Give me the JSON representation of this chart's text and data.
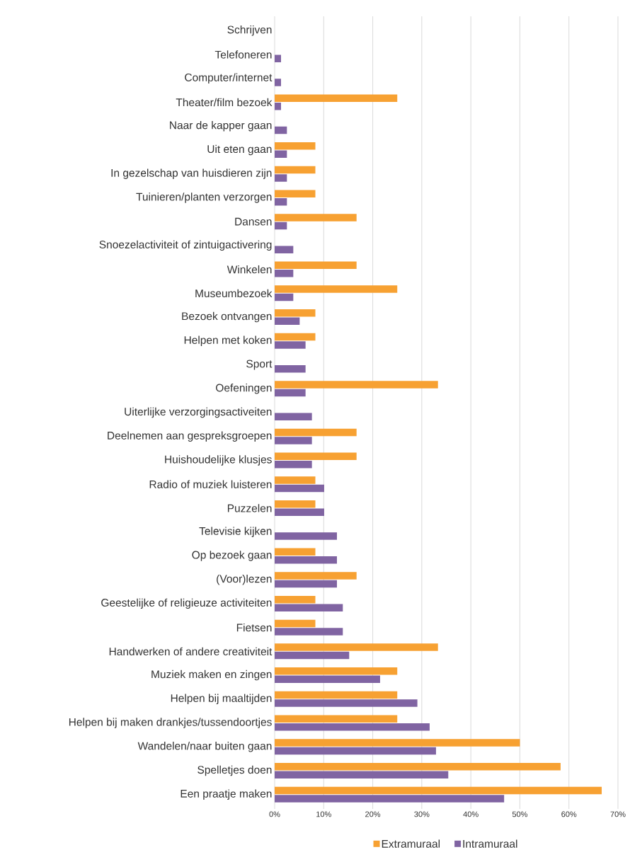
{
  "chart_data": {
    "type": "bar",
    "orientation": "horizontal",
    "categories": [
      "Schrijven",
      "Telefoneren",
      "Computer/internet",
      "Theater/film bezoek",
      "Naar de kapper gaan",
      "Uit eten gaan",
      "In gezelschap van huisdieren zijn",
      "Tuinieren/planten verzorgen",
      "Dansen",
      "Snoezelactiviteit of zintuigactivering",
      "Winkelen",
      "Museumbezoek",
      "Bezoek ontvangen",
      "Helpen met koken",
      "Sport",
      "Oefeningen",
      "Uiterlijke verzorgingsactiveiten",
      "Deelnemen aan gespreksgroepen",
      "Huishoudelijke klusjes",
      "Radio of muziek luisteren",
      "Puzzelen",
      "Televisie kijken",
      "Op bezoek gaan",
      "(Voor)lezen",
      "Geestelijke of religieuze activiteiten",
      "Fietsen",
      "Handwerken of andere creativiteit",
      "Muziek maken en zingen",
      "Helpen bij maaltijden",
      "Helpen bij maken drankjes/tussendoortjes",
      "Wandelen/naar buiten gaan",
      "Spelletjes doen",
      "Een praatje maken"
    ],
    "series": [
      {
        "name": "Extramuraal",
        "color": "#f7a132",
        "values": [
          0,
          0,
          0,
          25,
          0,
          8.3,
          8.3,
          8.3,
          16.7,
          0,
          16.7,
          25,
          8.3,
          8.3,
          0,
          33.3,
          0,
          16.7,
          16.7,
          8.3,
          8.3,
          0,
          8.3,
          16.7,
          8.3,
          8.3,
          33.3,
          25,
          25,
          25,
          50,
          58.3,
          66.7
        ]
      },
      {
        "name": "Intramuraal",
        "color": "#8064a2",
        "values": [
          0,
          1.3,
          1.3,
          1.3,
          2.5,
          2.5,
          2.5,
          2.5,
          2.5,
          3.8,
          3.8,
          3.8,
          5.1,
          6.3,
          6.3,
          6.3,
          7.6,
          7.6,
          7.6,
          10.1,
          10.1,
          12.7,
          12.7,
          12.7,
          13.9,
          13.9,
          15.2,
          21.5,
          29.1,
          31.6,
          32.9,
          35.4,
          46.8
        ]
      }
    ],
    "xlim": [
      0,
      70
    ],
    "xticks": [
      {
        "value": 0,
        "label": "0%"
      },
      {
        "value": 10,
        "label": "10%"
      },
      {
        "value": 20,
        "label": "20%"
      },
      {
        "value": 30,
        "label": "30%"
      },
      {
        "value": 40,
        "label": "40%"
      },
      {
        "value": 50,
        "label": "50%"
      },
      {
        "value": 60,
        "label": "60%"
      },
      {
        "value": 70,
        "label": "70%"
      }
    ],
    "grid": "x",
    "legend": "bottom"
  }
}
